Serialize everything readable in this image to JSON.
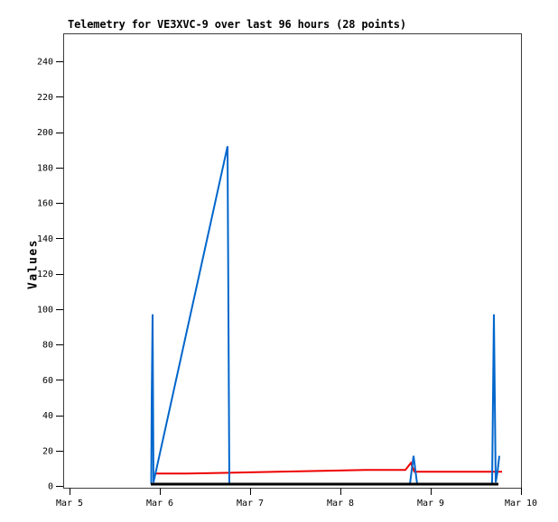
{
  "window": {
    "background": "#ffffff"
  },
  "chart_data": {
    "type": "line",
    "title": "Telemetry for VE3XVC-9 over last 96 hours (28 points)",
    "xlabel": "",
    "ylabel": "Values",
    "grid": false,
    "legend": "none",
    "frame_color": "#3c3c3c",
    "tick_color": "#000000",
    "y_ticks": [
      0,
      20,
      40,
      60,
      80,
      100,
      120,
      140,
      160,
      180,
      200,
      220,
      240
    ],
    "ylim": [
      0,
      257
    ],
    "x_tick_labels": [
      "Mar 5",
      "Mar 6",
      "Mar 7",
      "Mar 8",
      "Mar 9",
      "Mar 10"
    ],
    "x_tick_positions": [
      0,
      1,
      2,
      3,
      4,
      5
    ],
    "xlim": [
      -0.07,
      5.0
    ],
    "x_unit": "days after Mar 5",
    "series": [
      {
        "name": "red",
        "color": "#EE0000",
        "width": 2,
        "points": [
          [
            0.945,
            7
          ],
          [
            1.3,
            7
          ],
          [
            2.3,
            8
          ],
          [
            3.28,
            9
          ],
          [
            3.72,
            9
          ],
          [
            3.78,
            13
          ],
          [
            3.82,
            8
          ],
          [
            4.79,
            8
          ]
        ]
      },
      {
        "name": "blue",
        "color": "#0066CC",
        "width": 2,
        "points": [
          [
            0.905,
            1
          ],
          [
            0.91,
            48
          ],
          [
            0.92,
            97
          ],
          [
            0.93,
            2
          ],
          [
            1.75,
            192
          ],
          [
            1.76,
            97
          ],
          [
            1.77,
            1
          ],
          [
            2.3,
            1
          ],
          [
            3.0,
            1
          ],
          [
            3.77,
            1
          ],
          [
            3.81,
            17
          ],
          [
            3.85,
            1
          ],
          [
            4.68,
            1
          ],
          [
            4.7,
            97
          ],
          [
            4.72,
            2
          ],
          [
            4.74,
            8
          ],
          [
            4.76,
            17
          ]
        ]
      },
      {
        "name": "black",
        "color": "#000000",
        "width": 3,
        "points": [
          [
            0.9,
            1
          ],
          [
            4.75,
            1
          ]
        ]
      }
    ]
  }
}
